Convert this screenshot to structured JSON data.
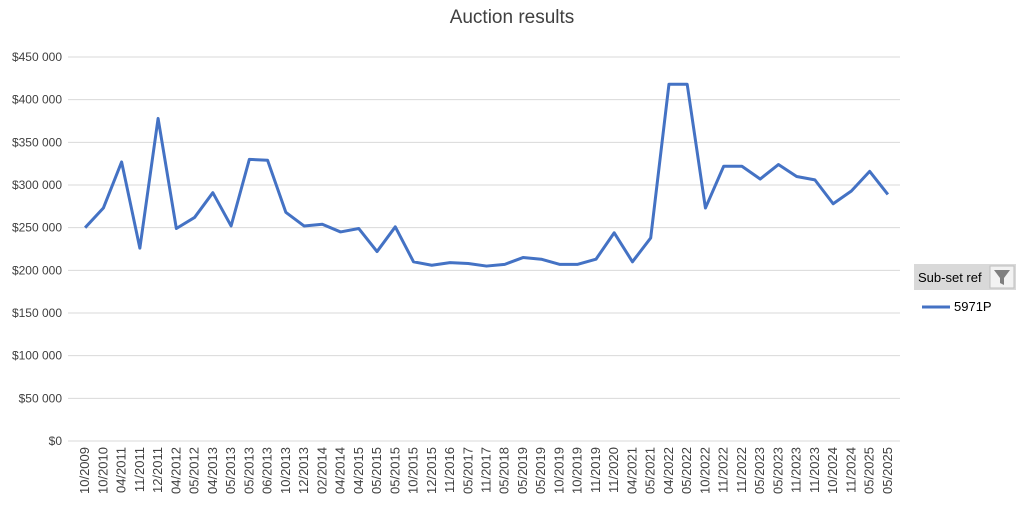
{
  "chart_data": {
    "type": "line",
    "title": "Auction results",
    "categories": [
      "10/2009",
      "10/2010",
      "04/2011",
      "11/2011",
      "12/2011",
      "04/2012",
      "05/2012",
      "04/2013",
      "05/2013",
      "05/2013",
      "06/2013",
      "10/2013",
      "12/2013",
      "02/2014",
      "04/2014",
      "04/2015",
      "05/2015",
      "05/2015",
      "10/2015",
      "12/2015",
      "11/2016",
      "05/2017",
      "11/2017",
      "05/2018",
      "05/2019",
      "05/2019",
      "10/2019",
      "10/2019",
      "11/2019",
      "11/2020",
      "04/2021",
      "05/2021",
      "04/2022",
      "05/2022",
      "10/2022",
      "11/2022",
      "11/2022",
      "05/2023",
      "05/2023",
      "11/2023",
      "11/2023",
      "10/2024",
      "11/2024",
      "05/2025",
      "05/2025"
    ],
    "series": [
      {
        "name": "5971P",
        "color": "#4472c4",
        "values": [
          250000,
          273000,
          327000,
          226000,
          378000,
          249000,
          262000,
          291000,
          252000,
          330000,
          329000,
          268000,
          252000,
          254000,
          245000,
          249000,
          222000,
          251000,
          210000,
          206000,
          209000,
          208000,
          205000,
          207000,
          215000,
          213000,
          207000,
          207000,
          213000,
          244000,
          210000,
          238000,
          418000,
          418000,
          273000,
          322000,
          322000,
          307000,
          324000,
          310000,
          306000,
          278000,
          293000,
          316000,
          289000
        ]
      }
    ],
    "ylim": [
      0,
      450000
    ],
    "yticks": [
      {
        "value": 0,
        "label": "$0"
      },
      {
        "value": 50000,
        "label": "$50 000"
      },
      {
        "value": 100000,
        "label": "$100 000"
      },
      {
        "value": 150000,
        "label": "$150 000"
      },
      {
        "value": 200000,
        "label": "$200 000"
      },
      {
        "value": 250000,
        "label": "$250 000"
      },
      {
        "value": 300000,
        "label": "$300 000"
      },
      {
        "value": 350000,
        "label": "$350 000"
      },
      {
        "value": 400000,
        "label": "$400 000"
      },
      {
        "value": 450000,
        "label": "$450 000"
      }
    ],
    "grid": true,
    "legend_title": "Sub-set ref",
    "legend": "right"
  }
}
